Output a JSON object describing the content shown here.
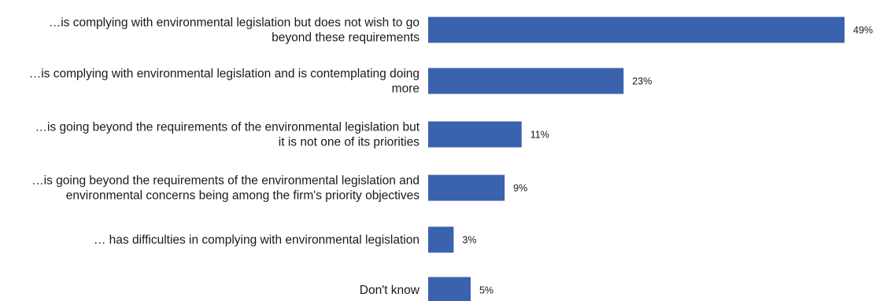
{
  "chart_data": {
    "type": "bar",
    "orientation": "horizontal",
    "categories": [
      [
        "…is complying with environmental legislation but does not wish to go",
        "beyond these requirements"
      ],
      [
        "…is complying with environmental legislation and is contemplating doing",
        "more"
      ],
      [
        "…is going beyond the requirements of the environmental legislation but",
        "it is not one of its priorities"
      ],
      [
        "…is going beyond the requirements of the environmental legislation and",
        "environmental concerns being among the firm's priority objectives"
      ],
      [
        "… has difficulties in complying with environmental legislation"
      ],
      [
        "Don't know"
      ]
    ],
    "values": [
      49,
      23,
      11,
      9,
      3,
      5
    ],
    "value_labels": [
      "49%",
      "23%",
      "11%",
      "9%",
      "3%",
      "5%"
    ],
    "xlim": [
      0,
      49
    ],
    "unit": "%",
    "grid": false,
    "legend": "none",
    "bar_color": "#3a62ad",
    "title": "",
    "xlabel": "",
    "ylabel": ""
  }
}
